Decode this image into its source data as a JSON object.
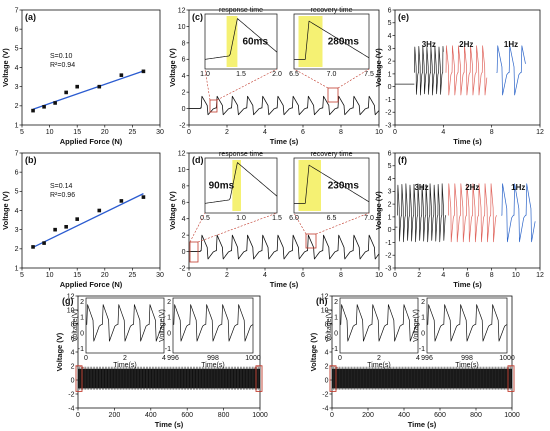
{
  "chart_data": [
    {
      "id": "a",
      "type": "scatter",
      "panel_label": "(a)",
      "xlabel": "Applied Force (N)",
      "ylabel": "Voltage (V)",
      "xlim": [
        5,
        30
      ],
      "ylim": [
        1,
        7
      ],
      "xticks": [
        "5",
        "10",
        "15",
        "20",
        "25",
        "30"
      ],
      "yticks": [
        "1",
        "2",
        "3",
        "4",
        "5",
        "6",
        "7"
      ],
      "x": [
        7,
        9,
        11,
        13,
        15,
        19,
        23,
        27
      ],
      "y": [
        1.75,
        1.95,
        2.15,
        2.7,
        3.0,
        3.0,
        3.6,
        3.8
      ],
      "fit": {
        "slope": 0.1,
        "intercept": 1.12
      },
      "annotations": [
        "S=0.10",
        "R²=0.94"
      ]
    },
    {
      "id": "b",
      "type": "scatter",
      "panel_label": "(b)",
      "xlabel": "Applied Force (N)",
      "ylabel": "Voltage (V)",
      "xlim": [
        5,
        30
      ],
      "ylim": [
        1,
        7
      ],
      "xticks": [
        "5",
        "10",
        "15",
        "20",
        "25",
        "30"
      ],
      "yticks": [
        "1",
        "2",
        "3",
        "4",
        "5",
        "6",
        "7"
      ],
      "x": [
        7,
        9,
        11,
        13,
        15,
        19,
        23,
        27
      ],
      "y": [
        2.1,
        2.3,
        3.0,
        3.15,
        3.55,
        4.0,
        4.5,
        4.7
      ],
      "fit": {
        "slope": 0.14,
        "intercept": 1.1
      },
      "annotations": [
        "S=0.14",
        "R²=0.96"
      ]
    },
    {
      "id": "c",
      "type": "line",
      "panel_label": "(c)",
      "xlabel": "Time (s)",
      "ylabel": "Voltage (V)",
      "xlim": [
        0,
        10
      ],
      "ylim": [
        -2,
        12
      ],
      "xticks": [
        "0",
        "2",
        "4",
        "6",
        "8",
        "10"
      ],
      "yticks": [
        "-2",
        "0",
        "2",
        "4",
        "6",
        "8",
        "10",
        "12"
      ],
      "pulse_times": [
        0.6,
        1.4,
        2.2,
        3.0,
        3.8,
        4.6,
        5.4,
        6.2,
        7.0,
        7.8,
        8.6,
        9.4
      ],
      "peak_voltage": 1.5,
      "trough_voltage": -1.0,
      "insets": [
        {
          "title": "response time",
          "value": "60ms",
          "xlim": [
            1.0,
            2.0
          ],
          "xticks": [
            "1.0",
            "1.5",
            "2.0"
          ],
          "yticks": [
            "-1",
            "0"
          ],
          "xlabel": "Time(s)",
          "ylabel": "Voltage(V)"
        },
        {
          "title": "recovery time",
          "value": "280ms",
          "xlim": [
            6.5,
            7.5
          ],
          "xticks": [
            "6.5",
            "7.0",
            "7.5"
          ],
          "xlabel": "Time(s)"
        }
      ]
    },
    {
      "id": "d",
      "type": "line",
      "panel_label": "(d)",
      "xlabel": "Time (s)",
      "ylabel": "Voltage (V)",
      "xlim": [
        0,
        10
      ],
      "ylim": [
        -2,
        12
      ],
      "xticks": [
        "0",
        "2",
        "4",
        "6",
        "8",
        "10"
      ],
      "yticks": [
        "-2",
        "0",
        "2",
        "4",
        "6",
        "8",
        "10",
        "12"
      ],
      "pulse_times": [
        0.6,
        1.4,
        2.2,
        3.0,
        3.8,
        4.6,
        5.4,
        6.2,
        7.0,
        7.8,
        8.6,
        9.4
      ],
      "peak_voltage": 2.0,
      "trough_voltage": -1.2,
      "insets": [
        {
          "title": "response time",
          "value": "90ms",
          "xlim": [
            0.5,
            1.5
          ],
          "xticks": [
            "0.5",
            "1.0",
            "1.5"
          ],
          "xlabel": "Time(s)",
          "ylabel": "Voltage(V)"
        },
        {
          "title": "recovery time",
          "value": "230ms",
          "xlim": [
            6.0,
            7.0
          ],
          "xticks": [
            "6.0",
            "6.5",
            "7.0"
          ],
          "xlabel": "Time(s)"
        }
      ]
    },
    {
      "id": "e",
      "type": "line",
      "panel_label": "(e)",
      "xlabel": "Time (s)",
      "ylabel": "Voltage (V)",
      "xlim": [
        0,
        12
      ],
      "ylim": [
        -3,
        6
      ],
      "xticks": [
        "0",
        "4",
        "8",
        "12"
      ],
      "yticks": [
        "-3",
        "-2",
        "-1",
        "0",
        "1",
        "2",
        "3",
        "4",
        "5",
        "6"
      ],
      "series": [
        {
          "name": "3Hz",
          "t_range": [
            1.6,
            4.0
          ],
          "freq": 3,
          "amp": 2.2,
          "color": "#222222"
        },
        {
          "name": "2Hz",
          "t_range": [
            4.2,
            7.6
          ],
          "freq": 2,
          "amp": 2.2,
          "color": "#e0675f"
        },
        {
          "name": "1Hz",
          "t_range": [
            8.4,
            10.8
          ],
          "freq": 1,
          "amp": 2.2,
          "color": "#2a63c8"
        }
      ]
    },
    {
      "id": "f",
      "type": "line",
      "panel_label": "(f)",
      "xlabel": "Time (s)",
      "ylabel": "Voltage (V)",
      "xlim": [
        0,
        12
      ],
      "ylim": [
        -3,
        6
      ],
      "xticks": [
        "0",
        "2",
        "4",
        "6",
        "8",
        "10",
        "12"
      ],
      "yticks": [
        "-3",
        "-2",
        "-1",
        "0",
        "1",
        "2",
        "3",
        "4",
        "5",
        "6"
      ],
      "series": [
        {
          "name": "3Hz",
          "t_range": [
            0.2,
            4.2
          ],
          "freq": 3,
          "amp": 2.6,
          "color": "#222222"
        },
        {
          "name": "2Hz",
          "t_range": [
            4.4,
            8.4
          ],
          "freq": 2,
          "amp": 2.6,
          "color": "#e0675f"
        },
        {
          "name": "1Hz",
          "t_range": [
            8.8,
            11.6
          ],
          "freq": 1,
          "amp": 2.6,
          "color": "#2a63c8"
        }
      ]
    },
    {
      "id": "g",
      "type": "line",
      "panel_label": "(g)",
      "xlabel": "Time (s)",
      "ylabel": "Voltage (V)",
      "xlim": [
        0,
        1000
      ],
      "ylim": [
        -4,
        12
      ],
      "xticks": [
        "0",
        "200",
        "400",
        "600",
        "800",
        "1000"
      ],
      "yticks": [
        "-4",
        "-2",
        "0",
        "2",
        "4",
        "6",
        "8",
        "10",
        "12"
      ],
      "band": [
        -1.2,
        1.6
      ],
      "insets": [
        {
          "xlim": [
            0,
            4
          ],
          "xticks": [
            "0",
            "2",
            "4"
          ],
          "yticks": [
            "-1",
            "0",
            "1",
            "2"
          ],
          "xlabel": "Time(s)",
          "ylabel": "Voltage(V)"
        },
        {
          "xlim": [
            996,
            1000
          ],
          "xticks": [
            "996",
            "998",
            "1000"
          ],
          "yticks": [
            "-1",
            "0",
            "1",
            "2"
          ],
          "xlabel": "Time(s)",
          "ylabel": "Voltage(V)"
        }
      ]
    },
    {
      "id": "h",
      "type": "line",
      "panel_label": "(h)",
      "xlabel": "Time (s)",
      "ylabel": "Voltage (V)",
      "xlim": [
        0,
        1000
      ],
      "ylim": [
        -4,
        12
      ],
      "xticks": [
        "0",
        "200",
        "400",
        "600",
        "800",
        "1000"
      ],
      "yticks": [
        "-4",
        "-2",
        "0",
        "2",
        "4",
        "6",
        "8",
        "10",
        "12"
      ],
      "band": [
        -1.2,
        1.6
      ],
      "insets": [
        {
          "xlim": [
            0,
            4
          ],
          "xticks": [
            "0",
            "2",
            "4"
          ],
          "yticks": [
            "-1",
            "0",
            "1",
            "2"
          ],
          "xlabel": "Time(s)",
          "ylabel": "Voltage(V)"
        },
        {
          "xlim": [
            996,
            1000
          ],
          "xticks": [
            "996",
            "998",
            "1000"
          ],
          "yticks": [
            "-1",
            "0",
            "1",
            "2"
          ],
          "xlabel": "Time(s)",
          "ylabel": "Voltage(V)"
        }
      ]
    }
  ]
}
